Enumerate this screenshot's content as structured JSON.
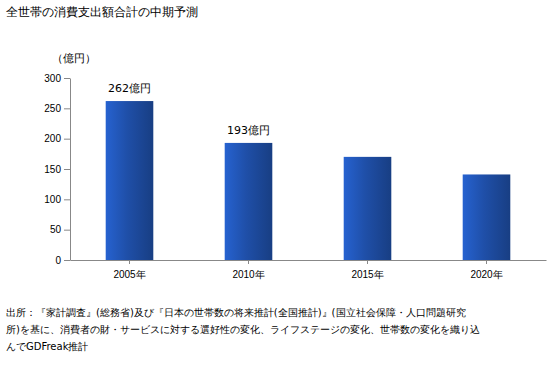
{
  "chart_data": {
    "type": "bar",
    "title": "全世帯の消費支出額合計の中期予測",
    "y_label": "（億円）",
    "categories": [
      "2005年",
      "2010年",
      "2015年",
      "2020年"
    ],
    "values": [
      262,
      193,
      170,
      141
    ],
    "value_labels": [
      "262億円",
      "193億円",
      null,
      null
    ],
    "data_labels": true,
    "color": "#1f4fa8",
    "ylim": [
      0,
      300
    ],
    "yticks": [
      0,
      50,
      100,
      150,
      200,
      250,
      300
    ],
    "grid": false,
    "annotations": [
      "出所：『家計調査』(総務省)及び『日本の世帯数の将来推計(全国推計)』(国立社会保障・人口問題研究",
      "所)を基に、消費者の財・サービスに対する選好性の変化、ライフステージの変化、世帯数の変化を織り込",
      "んでGDFreak推計"
    ]
  }
}
